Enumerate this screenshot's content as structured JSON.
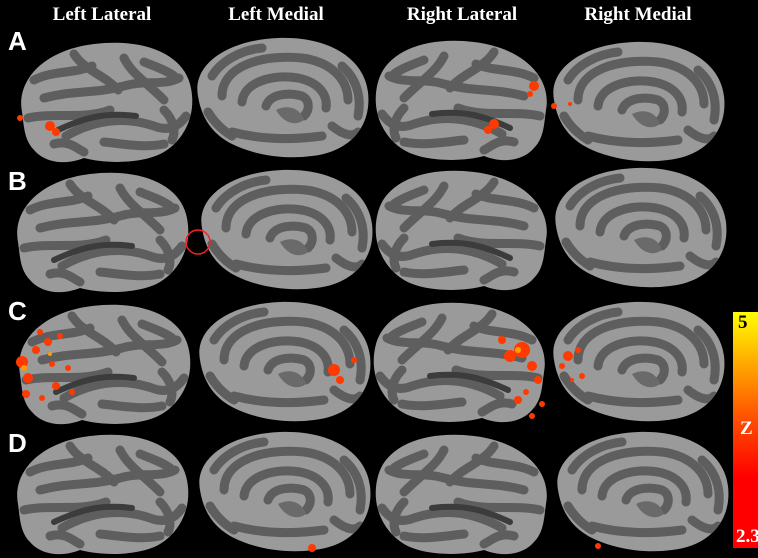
{
  "columns": [
    "Left Lateral",
    "Left Medial",
    "Right Lateral",
    "Right Medial"
  ],
  "rows": [
    "A",
    "B",
    "C",
    "D"
  ],
  "colorbar": {
    "max_label": "5",
    "mid_label": "Z",
    "min_label": "2.3",
    "colors": [
      "#ffff00",
      "#ffb000",
      "#ff5000",
      "#ff0000"
    ]
  },
  "colors": {
    "background": "#000000",
    "cortex_light": "#9a9a9a",
    "cortex_dark": "#5e5e5e",
    "activation": "#ff3a00",
    "marker_circle": "#ff2020"
  },
  "activations": {
    "A": {
      "lateral_left": "small",
      "medial_left": "none",
      "lateral_right": "small",
      "medial_right": "small"
    },
    "B": {
      "lateral_left": "none",
      "medial_left": "none",
      "lateral_right": "none",
      "medial_right": "none"
    },
    "C": {
      "lateral_left": "large",
      "medial_left": "medium",
      "lateral_right": "large",
      "medial_right": "medium"
    },
    "D": {
      "lateral_left": "none",
      "medial_left": "small",
      "lateral_right": "none",
      "medial_right": "small"
    }
  }
}
